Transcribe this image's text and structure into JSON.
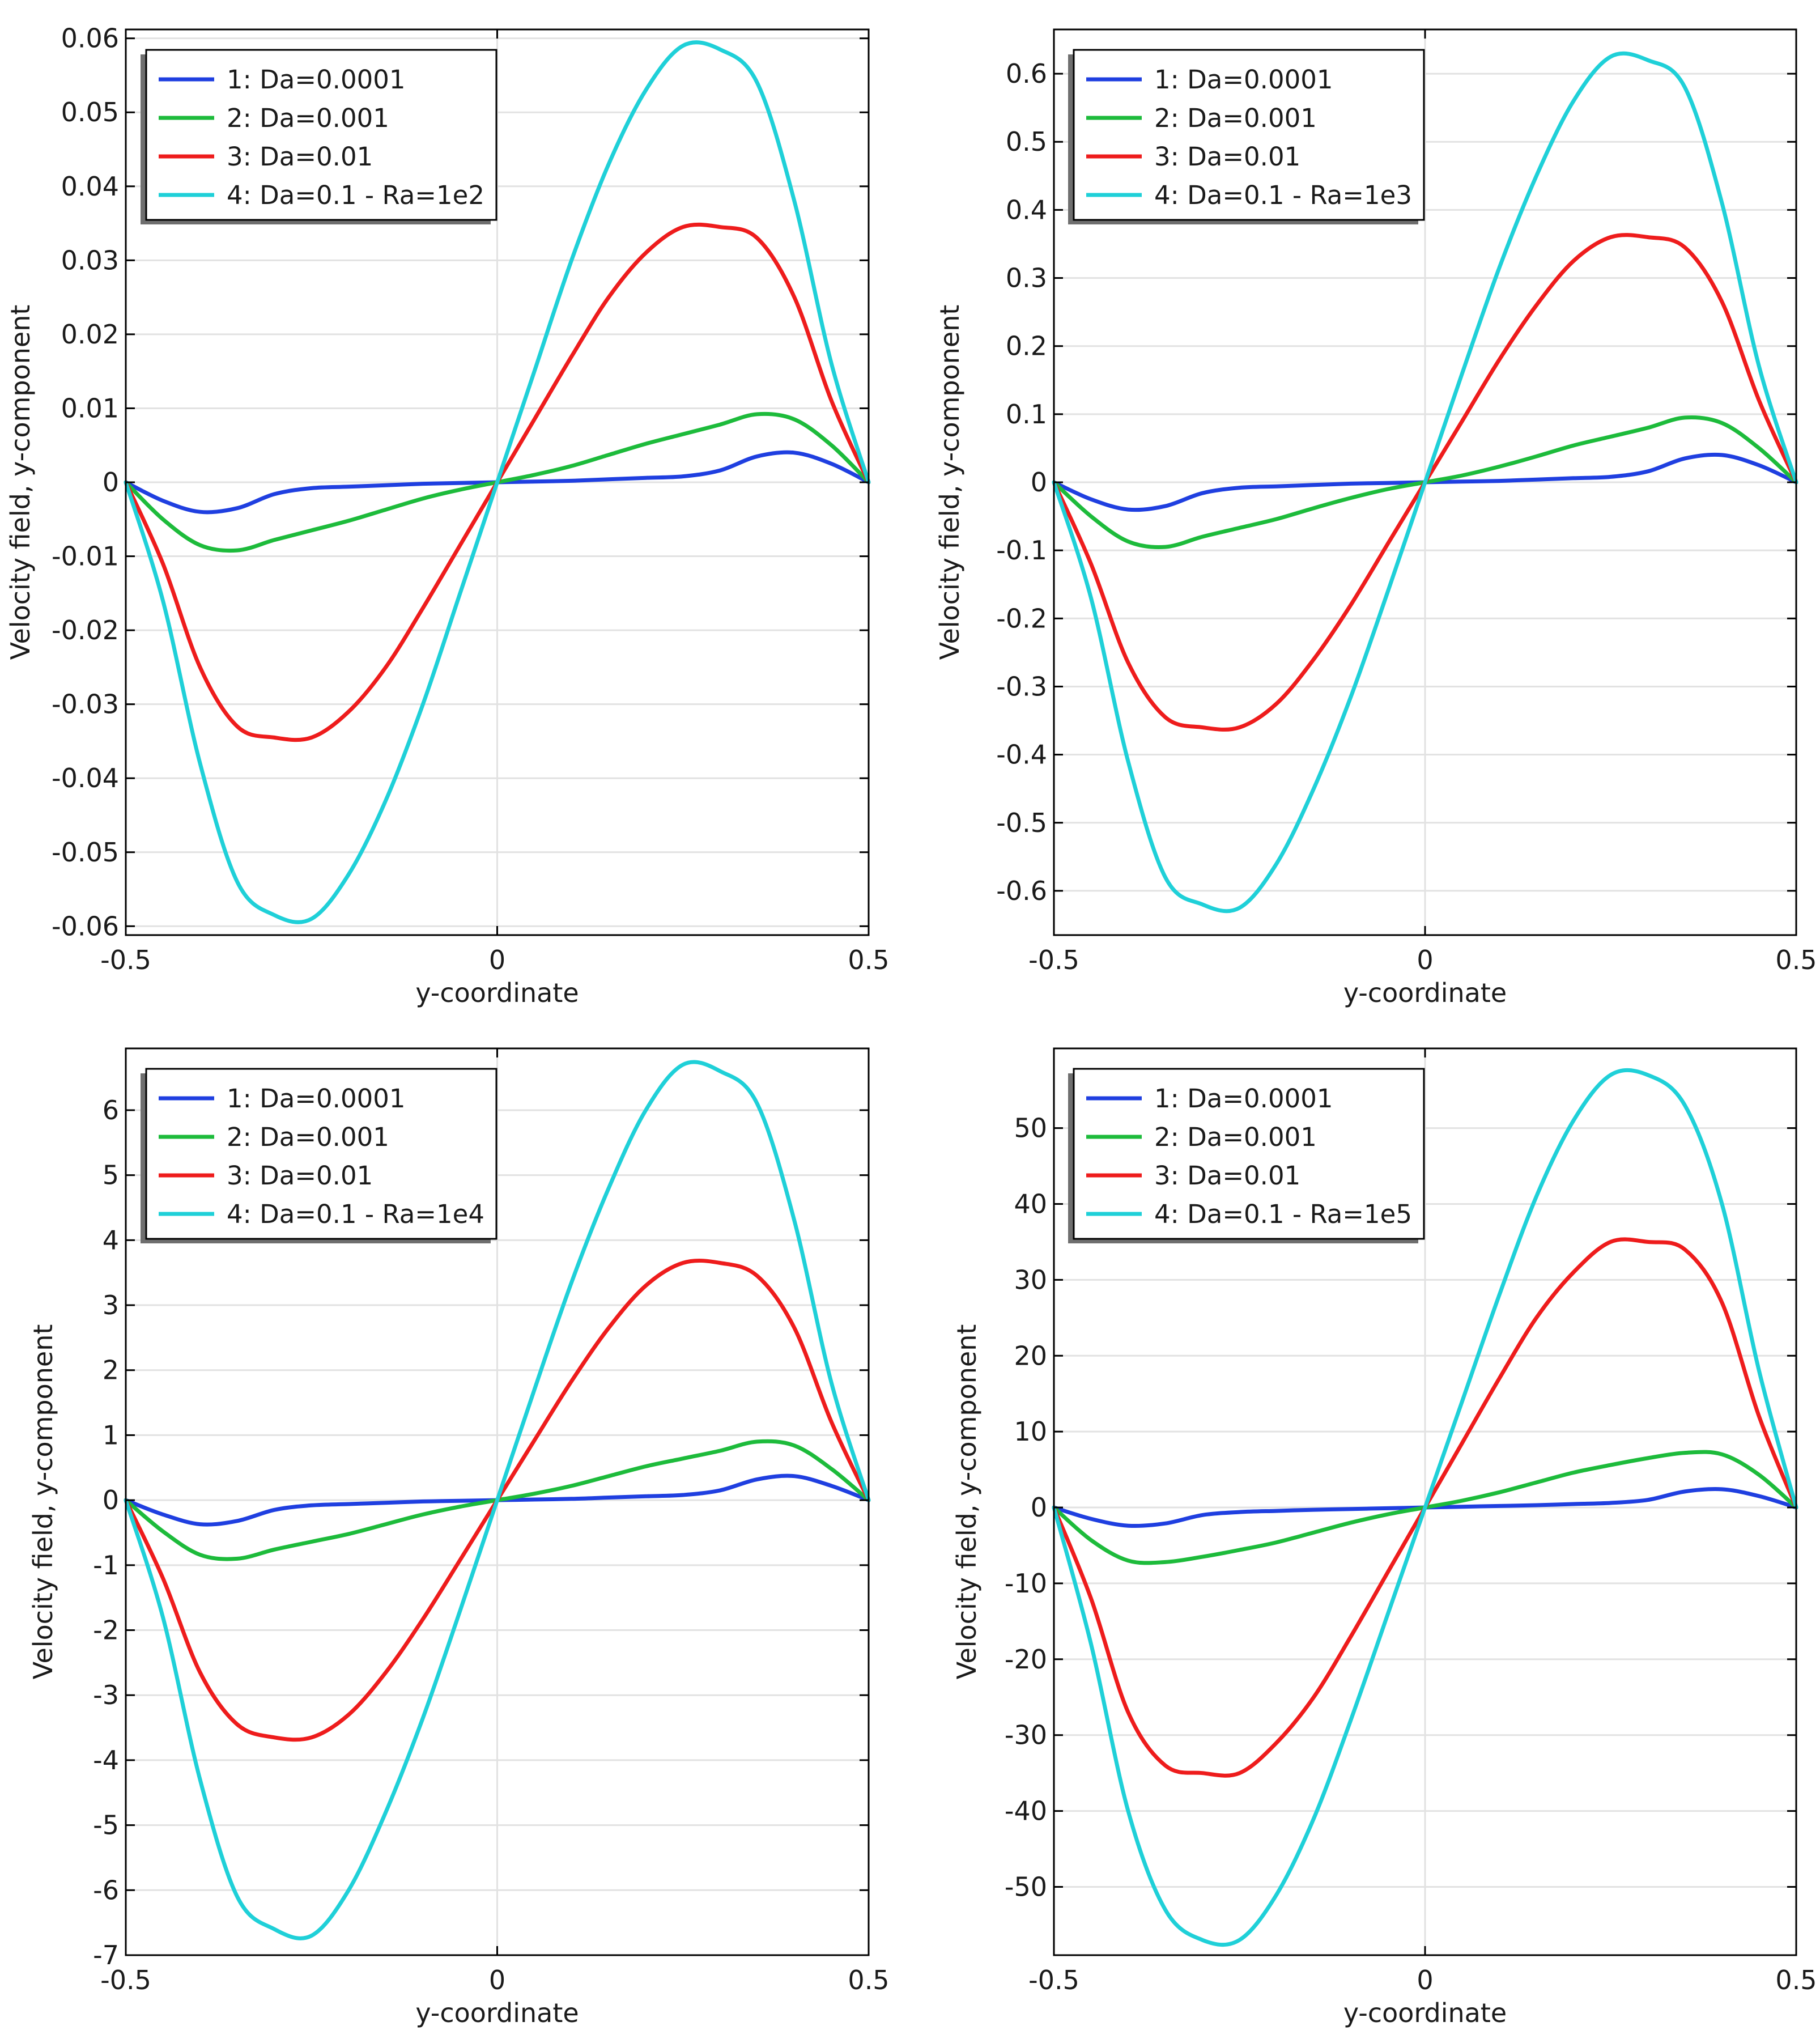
{
  "colors": {
    "s1": "#1f3fe0",
    "s2": "#1dbb3b",
    "s3": "#ee1c1c",
    "s4": "#1fd0d8",
    "grid": "#e2e2e2",
    "axis": "#000000"
  },
  "chart_data": [
    {
      "type": "line",
      "title": "",
      "xlabel": "y-coordinate",
      "ylabel": "Velocity field, y-component",
      "xlim": [
        -0.5,
        0.5
      ],
      "ylim": [
        -0.0612,
        0.0612
      ],
      "xticks": [
        -0.5,
        0,
        0.5
      ],
      "xtick_labels": [
        "-0.5",
        "0",
        "0.5"
      ],
      "yticks": [
        -0.06,
        -0.05,
        -0.04,
        -0.03,
        -0.02,
        -0.01,
        0,
        0.01,
        0.02,
        0.03,
        0.04,
        0.05,
        0.06
      ],
      "ytick_labels": [
        "-0.06",
        "-0.05",
        "-0.04",
        "-0.03",
        "-0.02",
        "-0.01",
        "0",
        "0.01",
        "0.02",
        "0.03",
        "0.04",
        "0.05",
        "0.06"
      ],
      "grid": true,
      "legend_position": "top-left",
      "x": [
        -0.5,
        -0.45,
        -0.4,
        -0.35,
        -0.3,
        -0.25,
        -0.2,
        -0.15,
        -0.1,
        -0.05,
        0,
        0.05,
        0.1,
        0.15,
        0.2,
        0.25,
        0.3,
        0.35,
        0.4,
        0.45,
        0.5
      ],
      "series": [
        {
          "name": "1: Da=0.0001",
          "values": [
            0,
            -0.0025,
            -0.004,
            -0.0035,
            -0.0016,
            -0.0008,
            -0.0006,
            -0.0004,
            -0.0002,
            -0.0001,
            0,
            0.0001,
            0.0002,
            0.0004,
            0.0006,
            0.0008,
            0.0016,
            0.0035,
            0.004,
            0.0025,
            0
          ]
        },
        {
          "name": "2: Da=0.001",
          "values": [
            0,
            -0.005,
            -0.0085,
            -0.0092,
            -0.0078,
            -0.0065,
            -0.0052,
            -0.0037,
            -0.0022,
            -0.001,
            0,
            0.001,
            0.0022,
            0.0037,
            0.0052,
            0.0065,
            0.0078,
            0.0092,
            0.0085,
            0.005,
            0
          ]
        },
        {
          "name": "3: Da=0.01",
          "values": [
            0,
            -0.011,
            -0.025,
            -0.033,
            -0.0345,
            -0.0345,
            -0.031,
            -0.025,
            -0.017,
            -0.0085,
            0,
            0.0085,
            0.017,
            0.025,
            0.031,
            0.0345,
            0.0345,
            0.033,
            0.025,
            0.011,
            0
          ]
        },
        {
          "name": "4: Da=0.1 - Ra=1e2",
          "values": [
            0,
            -0.016,
            -0.038,
            -0.054,
            -0.0585,
            -0.059,
            -0.053,
            -0.043,
            -0.03,
            -0.015,
            0,
            0.015,
            0.03,
            0.043,
            0.053,
            0.059,
            0.0585,
            0.054,
            0.038,
            0.016,
            0
          ]
        }
      ]
    },
    {
      "type": "line",
      "title": "",
      "xlabel": "y-coordinate",
      "ylabel": "Velocity field, y-component",
      "xlim": [
        -0.5,
        0.5
      ],
      "ylim": [
        -0.665,
        0.665
      ],
      "xticks": [
        -0.5,
        0,
        0.5
      ],
      "xtick_labels": [
        "-0.5",
        "0",
        "0.5"
      ],
      "yticks": [
        -0.6,
        -0.5,
        -0.4,
        -0.3,
        -0.2,
        -0.1,
        0,
        0.1,
        0.2,
        0.3,
        0.4,
        0.5,
        0.6
      ],
      "ytick_labels": [
        "-0.6",
        "-0.5",
        "-0.4",
        "-0.3",
        "-0.2",
        "-0.1",
        "0",
        "0.1",
        "0.2",
        "0.3",
        "0.4",
        "0.5",
        "0.6"
      ],
      "grid": true,
      "legend_position": "top-left",
      "x": [
        -0.5,
        -0.45,
        -0.4,
        -0.35,
        -0.3,
        -0.25,
        -0.2,
        -0.15,
        -0.1,
        -0.05,
        0,
        0.05,
        0.1,
        0.15,
        0.2,
        0.25,
        0.3,
        0.35,
        0.4,
        0.45,
        0.5
      ],
      "series": [
        {
          "name": "1: Da=0.0001",
          "values": [
            0,
            -0.025,
            -0.04,
            -0.035,
            -0.016,
            -0.008,
            -0.006,
            -0.004,
            -0.002,
            -0.001,
            0,
            0.001,
            0.002,
            0.004,
            0.006,
            0.008,
            0.016,
            0.035,
            0.04,
            0.025,
            0
          ]
        },
        {
          "name": "2: Da=0.001",
          "values": [
            0,
            -0.05,
            -0.087,
            -0.095,
            -0.08,
            -0.067,
            -0.054,
            -0.038,
            -0.023,
            -0.01,
            0,
            0.01,
            0.023,
            0.038,
            0.054,
            0.067,
            0.08,
            0.095,
            0.087,
            0.05,
            0
          ]
        },
        {
          "name": "3: Da=0.01",
          "values": [
            0,
            -0.12,
            -0.265,
            -0.345,
            -0.36,
            -0.36,
            -0.325,
            -0.26,
            -0.18,
            -0.09,
            0,
            0.09,
            0.18,
            0.26,
            0.325,
            0.36,
            0.36,
            0.345,
            0.265,
            0.12,
            0
          ]
        },
        {
          "name": "4: Da=0.1 - Ra=1e3",
          "values": [
            0,
            -0.17,
            -0.41,
            -0.58,
            -0.62,
            -0.625,
            -0.56,
            -0.45,
            -0.315,
            -0.16,
            0,
            0.16,
            0.315,
            0.45,
            0.56,
            0.625,
            0.62,
            0.58,
            0.41,
            0.17,
            0
          ]
        }
      ]
    },
    {
      "type": "line",
      "title": "",
      "xlabel": "y-coordinate",
      "ylabel": "Velocity field, y-component",
      "xlim": [
        -0.5,
        0.5
      ],
      "ylim": [
        -7,
        6.95
      ],
      "xticks": [
        -0.5,
        0,
        0.5
      ],
      "xtick_labels": [
        "-0.5",
        "0",
        "0.5"
      ],
      "yticks": [
        -7,
        -6,
        -5,
        -4,
        -3,
        -2,
        -1,
        0,
        1,
        2,
        3,
        4,
        5,
        6
      ],
      "ytick_labels": [
        "-7",
        "-6",
        "-5",
        "-4",
        "-3",
        "-2",
        "-1",
        "0",
        "1",
        "2",
        "3",
        "4",
        "5",
        "6"
      ],
      "grid": true,
      "legend_position": "top-left",
      "x": [
        -0.5,
        -0.45,
        -0.4,
        -0.35,
        -0.3,
        -0.25,
        -0.2,
        -0.15,
        -0.1,
        -0.05,
        0,
        0.05,
        0.1,
        0.15,
        0.2,
        0.25,
        0.3,
        0.35,
        0.4,
        0.45,
        0.5
      ],
      "series": [
        {
          "name": "1: Da=0.0001",
          "values": [
            0,
            -0.22,
            -0.37,
            -0.32,
            -0.15,
            -0.08,
            -0.06,
            -0.04,
            -0.02,
            -0.01,
            0,
            0.01,
            0.02,
            0.04,
            0.06,
            0.08,
            0.15,
            0.32,
            0.37,
            0.22,
            0
          ]
        },
        {
          "name": "2: Da=0.001",
          "values": [
            0,
            -0.48,
            -0.84,
            -0.9,
            -0.76,
            -0.64,
            -0.52,
            -0.37,
            -0.22,
            -0.1,
            0,
            0.1,
            0.22,
            0.37,
            0.52,
            0.64,
            0.76,
            0.9,
            0.84,
            0.48,
            0
          ]
        },
        {
          "name": "3: Da=0.01",
          "values": [
            0,
            -1.2,
            -2.65,
            -3.45,
            -3.65,
            -3.65,
            -3.3,
            -2.65,
            -1.83,
            -0.92,
            0,
            0.92,
            1.83,
            2.65,
            3.3,
            3.65,
            3.65,
            3.45,
            2.65,
            1.2,
            0
          ]
        },
        {
          "name": "4: Da=0.1 - Ra=1e4",
          "values": [
            0,
            -1.8,
            -4.3,
            -6.1,
            -6.6,
            -6.7,
            -6.0,
            -4.8,
            -3.35,
            -1.7,
            0,
            1.7,
            3.35,
            4.8,
            6.0,
            6.7,
            6.6,
            6.1,
            4.3,
            1.8,
            0
          ]
        }
      ]
    },
    {
      "type": "line",
      "title": "",
      "xlabel": "y-coordinate",
      "ylabel": "Velocity field, y-component",
      "xlim": [
        -0.5,
        0.5
      ],
      "ylim": [
        -59,
        60.5
      ],
      "xticks": [
        -0.5,
        0,
        0.5
      ],
      "xtick_labels": [
        "-0.5",
        "0",
        "0.5"
      ],
      "yticks": [
        -50,
        -40,
        -30,
        -20,
        -10,
        0,
        10,
        20,
        30,
        40,
        50
      ],
      "ytick_labels": [
        "-50",
        "-40",
        "-30",
        "-20",
        "-10",
        "0",
        "10",
        "20",
        "30",
        "40",
        "50"
      ],
      "grid": true,
      "legend_position": "top-left",
      "x": [
        -0.5,
        -0.45,
        -0.4,
        -0.35,
        -0.3,
        -0.25,
        -0.2,
        -0.15,
        -0.1,
        -0.05,
        0,
        0.05,
        0.1,
        0.15,
        0.2,
        0.25,
        0.3,
        0.35,
        0.4,
        0.45,
        0.5
      ],
      "series": [
        {
          "name": "1: Da=0.0001",
          "values": [
            0,
            -1.5,
            -2.4,
            -2.1,
            -1.0,
            -0.6,
            -0.45,
            -0.3,
            -0.2,
            -0.1,
            0,
            0.1,
            0.2,
            0.3,
            0.45,
            0.6,
            1.0,
            2.1,
            2.4,
            1.5,
            0
          ]
        },
        {
          "name": "2: Da=0.001",
          "values": [
            0,
            -4.3,
            -7.0,
            -7.2,
            -6.5,
            -5.6,
            -4.6,
            -3.3,
            -2.0,
            -0.9,
            0,
            0.9,
            2.0,
            3.3,
            4.6,
            5.6,
            6.5,
            7.2,
            7.0,
            4.3,
            0
          ]
        },
        {
          "name": "3: Da=0.01",
          "values": [
            0,
            -12,
            -27,
            -34,
            -35,
            -35,
            -31,
            -25,
            -17,
            -8.5,
            0,
            8.5,
            17,
            25,
            31,
            35,
            35,
            34,
            27,
            12,
            0
          ]
        },
        {
          "name": "4: Da=0.1 - Ra=1e5",
          "values": [
            0,
            -18,
            -40,
            -53,
            -57,
            -57,
            -51,
            -41,
            -28,
            -14,
            0,
            14,
            28,
            41,
            51,
            57,
            57,
            53,
            40,
            18,
            0
          ]
        }
      ]
    }
  ]
}
